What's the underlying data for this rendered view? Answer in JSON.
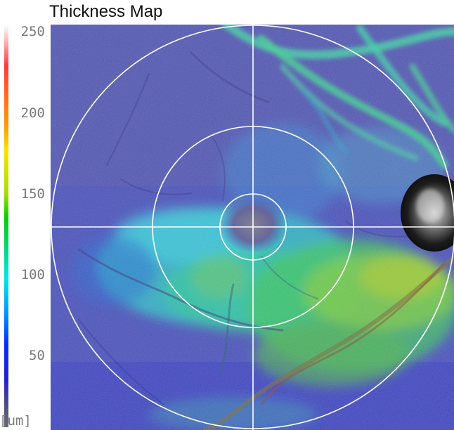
{
  "title": "Thickness Map",
  "scale": {
    "ticks": [
      "250",
      "200",
      "150",
      "100",
      "50"
    ],
    "unit": "[um]",
    "colors": {
      "high": "#ffffff",
      "red": "#ff3a3a",
      "yellow": "#ffe000",
      "green": "#00d000",
      "cyan": "#00e8e8",
      "blue": "#0030ff",
      "low": "#6a6a7a"
    }
  },
  "overlay": {
    "line_color": "#ffffff",
    "rings": [
      "outer-ring",
      "middle-ring",
      "inner-ring"
    ]
  }
}
